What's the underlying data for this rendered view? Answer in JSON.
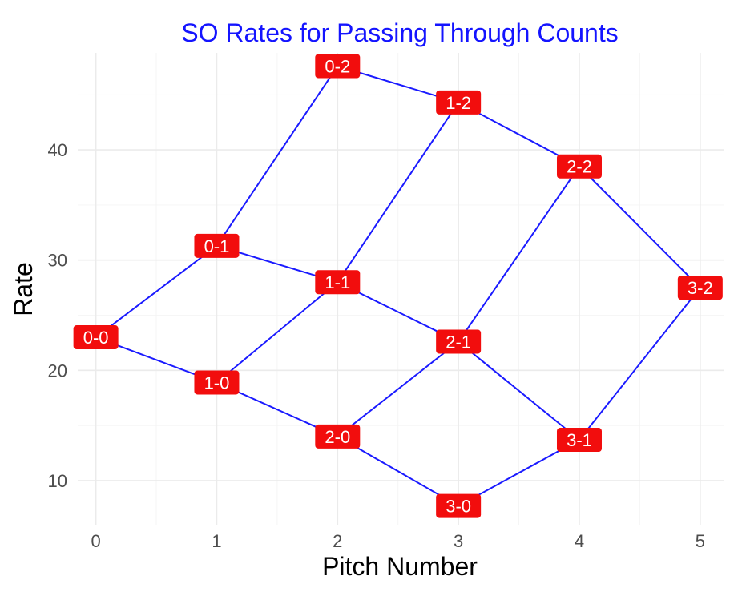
{
  "chart_data": {
    "type": "line",
    "title": "SO Rates for Passing Through Counts",
    "xlabel": "Pitch Number",
    "ylabel": "Rate",
    "xlim": [
      -0.15,
      5.2
    ],
    "ylim": [
      6,
      48.8
    ],
    "xticks": [
      0,
      1,
      2,
      3,
      4,
      5
    ],
    "yticks": [
      10,
      20,
      30,
      40
    ],
    "grid": true,
    "legend": "none",
    "colors": {
      "title": "#1414ff",
      "line": "#1a1aff",
      "label_fill": "#f20d0d",
      "label_text": "#ffffff"
    },
    "points": [
      {
        "label": "0-0",
        "x": 0,
        "y": 23.0
      },
      {
        "label": "0-1",
        "x": 1,
        "y": 31.3
      },
      {
        "label": "1-0",
        "x": 1,
        "y": 18.9
      },
      {
        "label": "0-2",
        "x": 2,
        "y": 47.6
      },
      {
        "label": "1-1",
        "x": 2,
        "y": 28.0
      },
      {
        "label": "2-0",
        "x": 2,
        "y": 14.0
      },
      {
        "label": "1-2",
        "x": 3,
        "y": 44.3
      },
      {
        "label": "2-1",
        "x": 3,
        "y": 22.6
      },
      {
        "label": "3-0",
        "x": 3,
        "y": 7.7
      },
      {
        "label": "2-2",
        "x": 4,
        "y": 38.5
      },
      {
        "label": "3-1",
        "x": 4,
        "y": 13.7
      },
      {
        "label": "3-2",
        "x": 5,
        "y": 27.5
      }
    ],
    "edges": [
      [
        "0-0",
        "0-1"
      ],
      [
        "0-0",
        "1-0"
      ],
      [
        "0-1",
        "0-2"
      ],
      [
        "0-1",
        "1-1"
      ],
      [
        "1-0",
        "1-1"
      ],
      [
        "1-0",
        "2-0"
      ],
      [
        "0-2",
        "1-2"
      ],
      [
        "1-1",
        "1-2"
      ],
      [
        "1-1",
        "2-1"
      ],
      [
        "2-0",
        "2-1"
      ],
      [
        "2-0",
        "3-0"
      ],
      [
        "1-2",
        "2-2"
      ],
      [
        "2-1",
        "2-2"
      ],
      [
        "2-1",
        "3-1"
      ],
      [
        "3-0",
        "3-1"
      ],
      [
        "2-2",
        "3-2"
      ],
      [
        "3-1",
        "3-2"
      ]
    ]
  }
}
